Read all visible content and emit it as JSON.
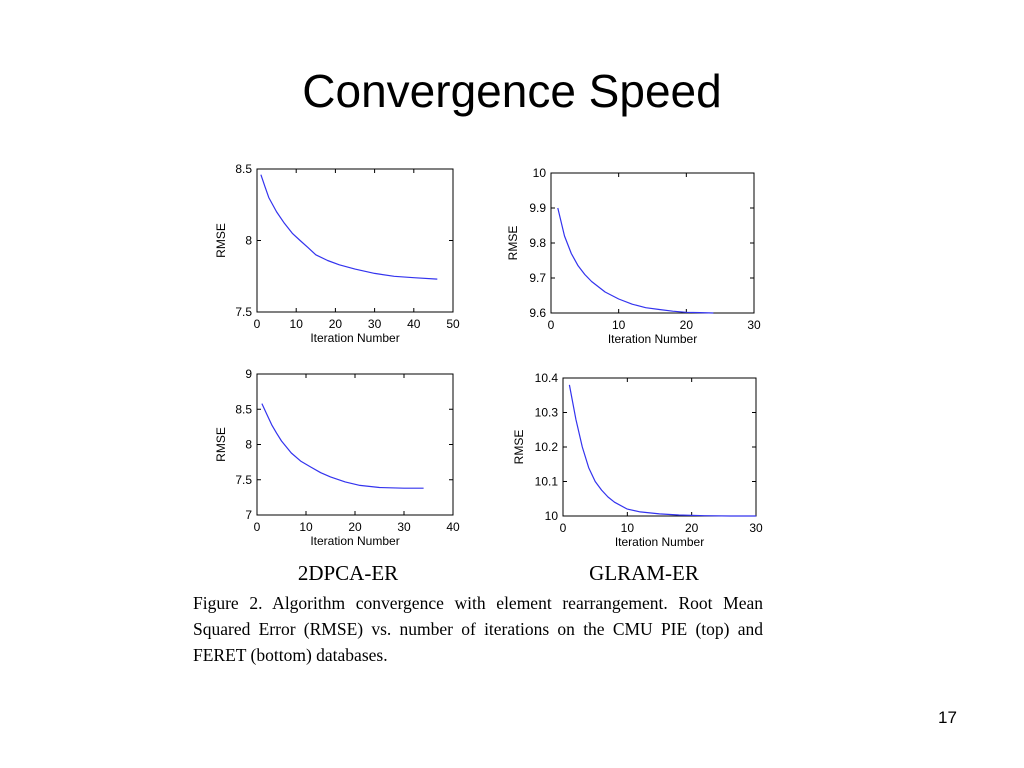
{
  "slide": {
    "title": "Convergence Speed",
    "page_number": "17"
  },
  "figure": {
    "column_labels": [
      "2DPCA-ER",
      "GLRAM-ER"
    ],
    "caption": "Figure 2. Algorithm convergence with element rearrangement. Root Mean Squared Error (RMSE) vs. number of iterations on the CMU PIE (top) and FERET (bottom) databases."
  },
  "colors": {
    "line": "#3333ee",
    "axis": "#000000"
  },
  "chart_data": [
    {
      "type": "line",
      "xlabel": "Iteration Number",
      "ylabel": "RMSE",
      "xlim": [
        0,
        50
      ],
      "ylim": [
        7.5,
        8.5
      ],
      "xticks": [
        0,
        10,
        20,
        30,
        40,
        50
      ],
      "yticks": [
        7.5,
        8,
        8.5
      ],
      "ytick_labels": [
        "7.5",
        "8",
        "8.5"
      ],
      "grid": false,
      "series": [
        {
          "x": [
            1,
            2,
            3,
            5,
            7,
            9,
            11,
            13,
            15,
            18,
            21,
            25,
            30,
            35,
            40,
            46
          ],
          "y": [
            8.46,
            8.38,
            8.3,
            8.2,
            8.12,
            8.05,
            8.0,
            7.95,
            7.9,
            7.86,
            7.83,
            7.8,
            7.77,
            7.75,
            7.74,
            7.73
          ]
        }
      ]
    },
    {
      "type": "line",
      "xlabel": "Iteration Number",
      "ylabel": "RMSE",
      "xlim": [
        0,
        30
      ],
      "ylim": [
        9.6,
        10
      ],
      "xticks": [
        0,
        10,
        20,
        30
      ],
      "yticks": [
        9.6,
        9.7,
        9.8,
        9.9,
        10
      ],
      "ytick_labels": [
        "9.6",
        "9.7",
        "9.8",
        "9.9",
        "10"
      ],
      "grid": false,
      "series": [
        {
          "x": [
            1,
            2,
            3,
            4,
            5,
            6,
            8,
            10,
            12,
            14,
            16,
            18,
            20,
            22,
            24
          ],
          "y": [
            9.9,
            9.82,
            9.77,
            9.735,
            9.71,
            9.69,
            9.66,
            9.64,
            9.625,
            9.615,
            9.61,
            9.605,
            9.602,
            9.601,
            9.6
          ]
        }
      ]
    },
    {
      "type": "line",
      "xlabel": "Iteration Number",
      "ylabel": "RMSE",
      "xlim": [
        0,
        40
      ],
      "ylim": [
        7,
        9
      ],
      "xticks": [
        0,
        10,
        20,
        30,
        40
      ],
      "yticks": [
        7,
        7.5,
        8,
        8.5,
        9
      ],
      "ytick_labels": [
        "7",
        "7.5",
        "8",
        "8.5",
        "9"
      ],
      "grid": false,
      "series": [
        {
          "x": [
            1,
            2,
            3,
            4,
            5,
            7,
            9,
            11,
            13,
            15,
            18,
            21,
            25,
            30,
            34
          ],
          "y": [
            8.58,
            8.43,
            8.28,
            8.16,
            8.05,
            7.88,
            7.76,
            7.68,
            7.6,
            7.54,
            7.47,
            7.42,
            7.39,
            7.38,
            7.38
          ]
        }
      ]
    },
    {
      "type": "line",
      "xlabel": "Iteration Number",
      "ylabel": "RMSE",
      "xlim": [
        0,
        30
      ],
      "ylim": [
        10,
        10.4
      ],
      "xticks": [
        0,
        10,
        20,
        30
      ],
      "yticks": [
        10,
        10.1,
        10.2,
        10.3,
        10.4
      ],
      "ytick_labels": [
        "10",
        "10.1",
        "10.2",
        "10.3",
        "10.4"
      ],
      "grid": false,
      "series": [
        {
          "x": [
            1,
            2,
            3,
            4,
            5,
            6,
            7,
            8,
            10,
            12,
            15,
            18,
            22,
            26,
            30
          ],
          "y": [
            10.38,
            10.28,
            10.2,
            10.14,
            10.1,
            10.075,
            10.055,
            10.04,
            10.02,
            10.012,
            10.006,
            10.003,
            10.001,
            10.0,
            10.0
          ]
        }
      ]
    }
  ]
}
